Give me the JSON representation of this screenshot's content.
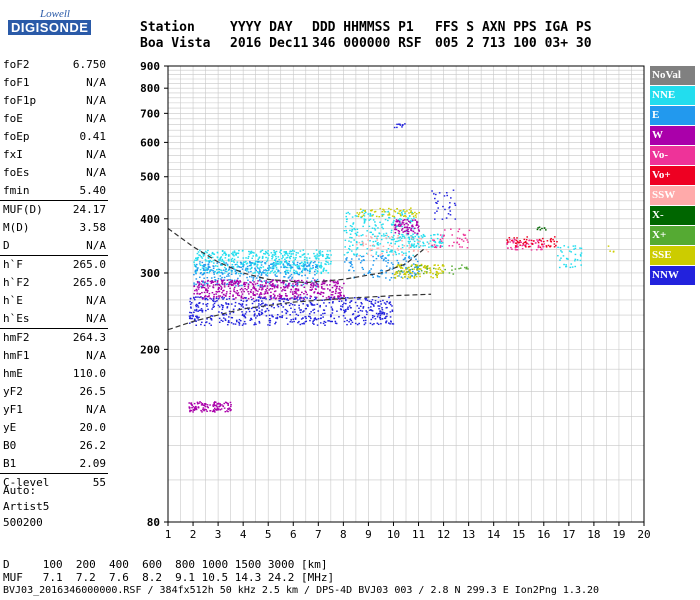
{
  "logo": {
    "line1": "Lowell",
    "line2": "DIGISONDE"
  },
  "header": {
    "labels": [
      "Station",
      "YYYY DAY",
      "DDD HHMMSS P1",
      "FFS S AXN PPS IGA PS"
    ],
    "values": [
      "Boa Vista",
      "2016 Dec11",
      "346 000000 RSF",
      "005 2 713 100 03+ 30"
    ]
  },
  "params": [
    {
      "name": "foF2",
      "value": "6.750"
    },
    {
      "name": "foF1",
      "value": "N/A"
    },
    {
      "name": "foF1p",
      "value": "N/A"
    },
    {
      "name": "foE",
      "value": "N/A"
    },
    {
      "name": "foEp",
      "value": "0.41"
    },
    {
      "name": "fxI",
      "value": "N/A"
    },
    {
      "name": "foEs",
      "value": "N/A"
    },
    {
      "name": "fmin",
      "value": "5.40"
    },
    {
      "name": "MUF(D)",
      "value": "24.17",
      "sep": true
    },
    {
      "name": "M(D)",
      "value": "3.58"
    },
    {
      "name": "D",
      "value": "N/A"
    },
    {
      "name": "h`F",
      "value": "265.0",
      "sep": true
    },
    {
      "name": "h`F2",
      "value": "265.0"
    },
    {
      "name": "h`E",
      "value": "N/A"
    },
    {
      "name": "h`Es",
      "value": "N/A"
    },
    {
      "name": "hmF2",
      "value": "264.3",
      "sep": true
    },
    {
      "name": "hmF1",
      "value": "N/A"
    },
    {
      "name": "hmE",
      "value": "110.0"
    },
    {
      "name": "yF2",
      "value": "26.5"
    },
    {
      "name": "yF1",
      "value": "N/A"
    },
    {
      "name": "yE",
      "value": "20.0"
    },
    {
      "name": "B0",
      "value": "26.2"
    },
    {
      "name": "B1",
      "value": "2.09"
    },
    {
      "name": "C-level",
      "value": "55",
      "sep": true
    }
  ],
  "auto": {
    "label": "Auto:",
    "artist": "Artist5",
    "version": "500200"
  },
  "legend": [
    {
      "label": "NoVal",
      "color": "#808080"
    },
    {
      "label": "NNE",
      "color": "#22ddee"
    },
    {
      "label": "E",
      "color": "#2299ee"
    },
    {
      "label": "W",
      "color": "#aa00aa"
    },
    {
      "label": "Vo-",
      "color": "#ee3399"
    },
    {
      "label": "Vo+",
      "color": "#ee0022"
    },
    {
      "label": "SSW",
      "color": "#ffaaaa"
    },
    {
      "label": "X-",
      "color": "#006600"
    },
    {
      "label": "X+",
      "color": "#55aa33"
    },
    {
      "label": "SSE",
      "color": "#cccc00"
    },
    {
      "label": "NNW",
      "color": "#2222dd"
    }
  ],
  "chart_data": {
    "type": "scatter",
    "title": "",
    "xlabel": "",
    "ylabel": "",
    "x_range": [
      1,
      20
    ],
    "y_range": [
      80,
      900
    ],
    "y_scale": "log",
    "grid": true,
    "x_ticks": [
      1,
      2,
      3,
      4,
      5,
      6,
      7,
      8,
      9,
      10,
      11,
      12,
      13,
      14,
      15,
      16,
      17,
      18,
      19,
      20
    ],
    "y_ticks": [
      80,
      200,
      300,
      400,
      500,
      600,
      700,
      800,
      900
    ],
    "series": [
      {
        "name": "NNE",
        "color": "#22ddee",
        "clusters": [
          {
            "x": [
              2.0,
              7.5
            ],
            "y": [
              300,
              340
            ],
            "n": 500
          },
          {
            "x": [
              8.0,
              10.8
            ],
            "y": [
              330,
              420
            ],
            "n": 250
          },
          {
            "x": [
              10.5,
              12.0
            ],
            "y": [
              345,
              370
            ],
            "n": 80
          },
          {
            "x": [
              16.5,
              17.5
            ],
            "y": [
              310,
              350
            ],
            "n": 40
          }
        ]
      },
      {
        "name": "E",
        "color": "#2299ee",
        "clusters": [
          {
            "x": [
              2.0,
              7.0
            ],
            "y": [
              280,
              320
            ],
            "n": 300
          },
          {
            "x": [
              8.0,
              11.0
            ],
            "y": [
              290,
              330
            ],
            "n": 120
          }
        ]
      },
      {
        "name": "W",
        "color": "#aa00aa",
        "clusters": [
          {
            "x": [
              2.0,
              8.0
            ],
            "y": [
              262,
              290
            ],
            "n": 500
          },
          {
            "x": [
              10.0,
              11.0
            ],
            "y": [
              370,
              400
            ],
            "n": 80
          },
          {
            "x": [
              1.8,
              3.5
            ],
            "y": [
              144,
              152
            ],
            "n": 120
          }
        ]
      },
      {
        "name": "Vo-",
        "color": "#ee3399",
        "clusters": [
          {
            "x": [
              14.5,
              16.0
            ],
            "y": [
              340,
              360
            ],
            "n": 60
          },
          {
            "x": [
              11.5,
              13.0
            ],
            "y": [
              340,
              380
            ],
            "n": 40
          }
        ]
      },
      {
        "name": "Vo+",
        "color": "#ee0022",
        "clusters": [
          {
            "x": [
              14.5,
              16.5
            ],
            "y": [
              345,
              365
            ],
            "n": 60
          }
        ]
      },
      {
        "name": "SSW",
        "color": "#ffaaaa",
        "clusters": [
          {
            "x": [
              8.5,
              11.5
            ],
            "y": [
              330,
              370
            ],
            "n": 60
          }
        ]
      },
      {
        "name": "X-",
        "color": "#006600",
        "clusters": [
          {
            "x": [
              15.7,
              16.1
            ],
            "y": [
              378,
              384
            ],
            "n": 8
          }
        ]
      },
      {
        "name": "X+",
        "color": "#55aa33",
        "clusters": [
          {
            "x": [
              10.0,
              13.0
            ],
            "y": [
              298,
              315
            ],
            "n": 40
          }
        ]
      },
      {
        "name": "SSE",
        "color": "#cccc00",
        "clusters": [
          {
            "x": [
              8.5,
              11.0
            ],
            "y": [
              405,
              425
            ],
            "n": 60
          },
          {
            "x": [
              10.0,
              12.0
            ],
            "y": [
              293,
              315
            ],
            "n": 100
          },
          {
            "x": [
              18.5,
              18.8
            ],
            "y": [
              335,
              350
            ],
            "n": 4
          }
        ]
      },
      {
        "name": "NNW",
        "color": "#2222dd",
        "clusters": [
          {
            "x": [
              1.8,
              10.0
            ],
            "y": [
              228,
              265
            ],
            "n": 600
          },
          {
            "x": [
              11.5,
              12.5
            ],
            "y": [
              400,
              470
            ],
            "n": 30
          },
          {
            "x": [
              10.0,
              11.0
            ],
            "y": [
              650,
              665
            ],
            "n": 10
          }
        ]
      }
    ],
    "profile_curve": {
      "upper": {
        "x": [
          1.0,
          2.0,
          3.0,
          4.0,
          5.0,
          6.5,
          8.0,
          9.5,
          10.5,
          11.2
        ],
        "y": [
          380,
          345,
          318,
          300,
          290,
          285,
          290,
          300,
          315,
          340
        ]
      },
      "lower": {
        "x": [
          1.0,
          2.0,
          3.0,
          4.0,
          6.0,
          8.0,
          10.0,
          11.5
        ],
        "y": [
          222,
          232,
          240,
          248,
          257,
          262,
          266,
          268
        ]
      }
    }
  },
  "footer": {
    "line1": "D     100  200  400  600  800 1000 1500 3000 [km]",
    "line2": "MUF   7.1  7.2  7.6  8.2  9.1 10.5 14.3 24.2 [MHz]",
    "line3": "BVJ03_2016346000000.RSF / 384fx512h 50 kHz 2.5 km / DPS-4D BVJ03 003 / 2.8 N 299.3 E Ion2Png 1.3.20"
  }
}
